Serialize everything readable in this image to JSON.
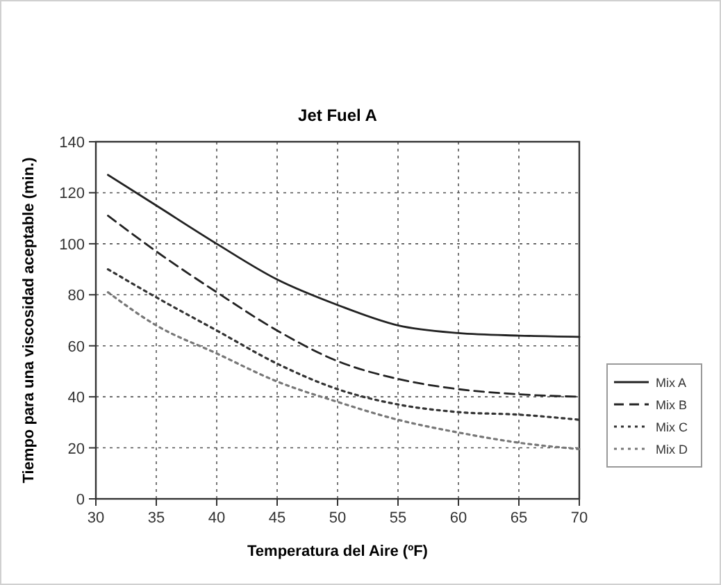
{
  "chart_data": {
    "type": "line",
    "title": "Jet Fuel A",
    "xlabel": "Temperatura del Aire (ºF)",
    "ylabel": "Tiempo para una viscosidad aceptable (min.)",
    "x": [
      31,
      35,
      40,
      45,
      50,
      55,
      60,
      65,
      70
    ],
    "series": [
      {
        "name": "Mix A",
        "color": "#222222",
        "line_style": "solid",
        "values": [
          127,
          115,
          100,
          86,
          76,
          68,
          65,
          64,
          63.5
        ]
      },
      {
        "name": "Mix B",
        "color": "#222222",
        "line_style": "dashed",
        "values": [
          111,
          97,
          81,
          66,
          54,
          47,
          43,
          41,
          40
        ]
      },
      {
        "name": "Mix C",
        "color": "#333333",
        "line_style": "dotted",
        "values": [
          90,
          79,
          66,
          53,
          43,
          37,
          34,
          33,
          31
        ]
      },
      {
        "name": "Mix D",
        "color": "#777777",
        "line_style": "dotted",
        "values": [
          81,
          68,
          57,
          46,
          38,
          31,
          26,
          22,
          19.5
        ]
      }
    ],
    "xlim": [
      30,
      70
    ],
    "xticks": [
      30,
      35,
      40,
      45,
      50,
      55,
      60,
      65,
      70
    ],
    "ylim": [
      0,
      140
    ],
    "yticks": [
      0,
      20,
      40,
      60,
      80,
      100,
      120,
      140
    ],
    "grid": true,
    "legend": "right",
    "marker": "none"
  }
}
